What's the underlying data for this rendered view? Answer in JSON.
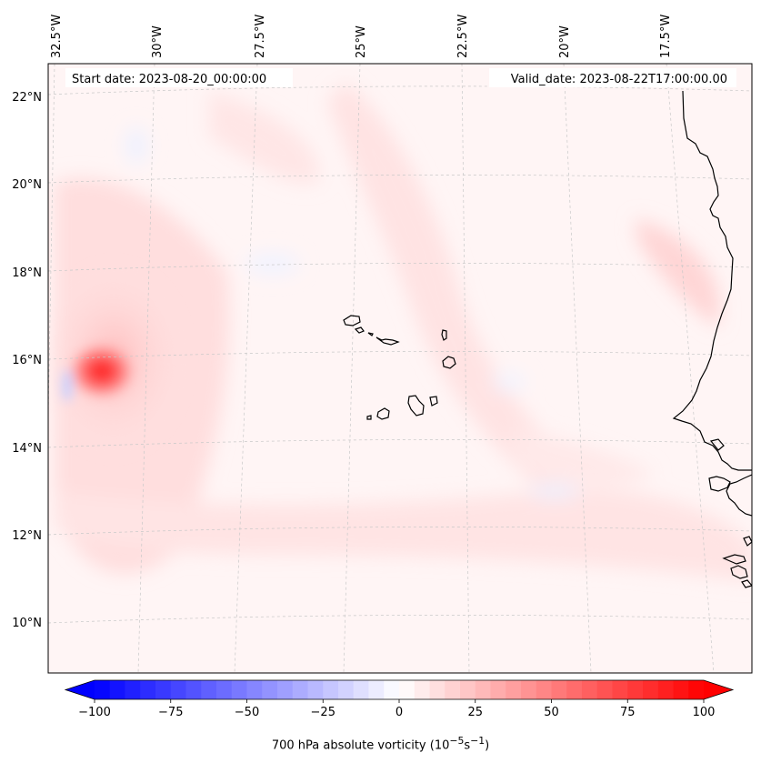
{
  "header": {
    "start_date": "Start date: 2023-08-20_00:00:00",
    "valid_date": "Valid_date: 2023-08-22T17:00:00.00"
  },
  "lon_labels": [
    "32.5°W",
    "30°W",
    "27.5°W",
    "25°W",
    "22.5°W",
    "20°W",
    "17.5°W"
  ],
  "lat_labels": [
    "22°N",
    "20°N",
    "18°N",
    "16°N",
    "14°N",
    "12°N",
    "10°N"
  ],
  "field": {
    "name": "700 hPa absolute vorticity",
    "colormap": [
      "#0000ff",
      "#ffffff",
      "#ff0000"
    ],
    "vmin": -100,
    "vmax": 100,
    "levels_step": 5,
    "features": [
      {
        "kind": "vortex max",
        "lat": 15.7,
        "lon": -31.2,
        "value": 100
      }
    ]
  },
  "colorbar": {
    "label_html": "700 hPa absolute vorticity (10<sup>−5</sup>s<sup>−1</sup>)",
    "ticks": [
      "−100",
      "−75",
      "−50",
      "−25",
      "0",
      "25",
      "50",
      "75",
      "100"
    ],
    "tick_values": [
      -100,
      -75,
      -50,
      -25,
      0,
      25,
      50,
      75,
      100
    ],
    "extend": "both"
  },
  "colors": {
    "background_field": "#fff5f5",
    "gridline": "#bbbbbb",
    "coastline": "#000000"
  }
}
